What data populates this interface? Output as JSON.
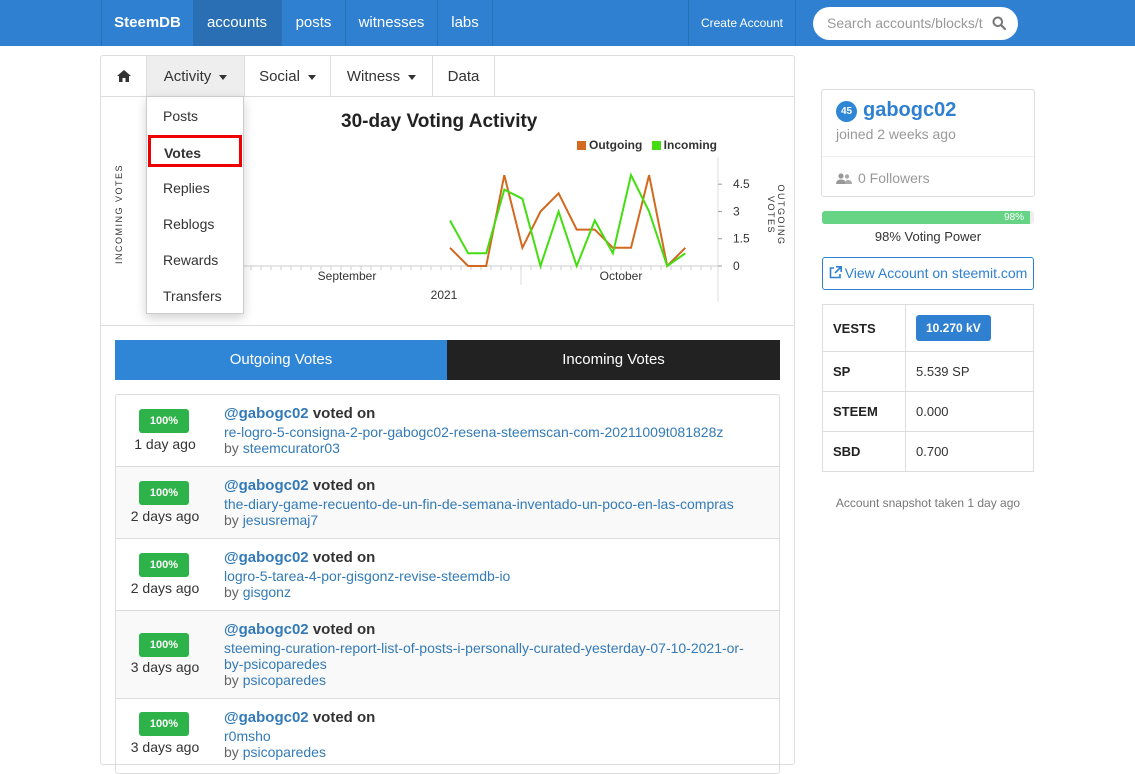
{
  "nav": {
    "brand": "SteemDB",
    "items": [
      "accounts",
      "posts",
      "witnesses",
      "labs"
    ],
    "create_account": "Create Account",
    "search_placeholder": "Search accounts/blocks/tx"
  },
  "tabs": {
    "activity": "Activity",
    "social": "Social",
    "witness": "Witness",
    "data": "Data"
  },
  "dropdown": [
    "Posts",
    "Votes",
    "Replies",
    "Reblogs",
    "Rewards",
    "Transfers"
  ],
  "chart_data": {
    "type": "line",
    "title": "30-day Voting Activity",
    "legend": [
      "Outgoing",
      "Incoming"
    ],
    "left_axis_label": "INCOMING VOTES",
    "right_axis_label": "OUTGOING VOTES",
    "right_ticks": [
      "4.5",
      "3",
      "1.5",
      "0"
    ],
    "x_labels": [
      "September",
      "October"
    ],
    "x_year": "2021",
    "colors": {
      "outgoing": "#d2691e",
      "incoming": "#44dd11"
    },
    "series": [
      {
        "name": "Outgoing",
        "values": [
          1,
          0,
          0,
          5,
          1,
          3,
          4,
          2,
          2,
          1,
          1,
          5,
          0,
          1
        ]
      },
      {
        "name": "Incoming",
        "values": [
          2.5,
          0.7,
          0.7,
          4.2,
          3.7,
          0,
          3,
          0,
          2.5,
          0.7,
          5,
          3,
          0,
          0.7
        ]
      }
    ]
  },
  "vote_tabs": {
    "outgoing": "Outgoing Votes",
    "incoming": "Incoming Votes"
  },
  "votes": [
    {
      "pct": "100%",
      "ago": "1 day ago",
      "voter": "@gabogc02",
      "action": "voted on",
      "permlink": "re-logro-5-consigna-2-por-gabogc02-resena-steemscan-com-20211009t081828z",
      "by": "by",
      "author": "steemcurator03"
    },
    {
      "pct": "100%",
      "ago": "2 days ago",
      "voter": "@gabogc02",
      "action": "voted on",
      "permlink": "the-diary-game-recuento-de-un-fin-de-semana-inventado-un-poco-en-las-compras",
      "by": "by",
      "author": "jesusremaj7"
    },
    {
      "pct": "100%",
      "ago": "2 days ago",
      "voter": "@gabogc02",
      "action": "voted on",
      "permlink": "logro-5-tarea-4-por-gisgonz-revise-steemdb-io",
      "by": "by",
      "author": "gisgonz"
    },
    {
      "pct": "100%",
      "ago": "3 days ago",
      "voter": "@gabogc02",
      "action": "voted on",
      "permlink": "steeming-curation-report-list-of-posts-i-personally-curated-yesterday-07-10-2021-or-by-psicoparedes",
      "by": "by",
      "author": "psicoparedes"
    },
    {
      "pct": "100%",
      "ago": "3 days ago",
      "voter": "@gabogc02",
      "action": "voted on",
      "permlink": "r0msho",
      "by": "by",
      "author": "psicoparedes"
    }
  ],
  "profile": {
    "level": "45",
    "username": "gabogc02",
    "joined": "joined 2 weeks ago",
    "followers": "0 Followers"
  },
  "voting_power": {
    "value": 0.98,
    "badge": "98%",
    "label": "98% Voting Power"
  },
  "view_account": "View Account on steemit.com",
  "stats": [
    {
      "key": "VESTS",
      "value": "10.270 kV"
    },
    {
      "key": "SP",
      "value": "5.539 SP"
    },
    {
      "key": "STEEM",
      "value": "0.000"
    },
    {
      "key": "SBD",
      "value": "0.700"
    }
  ],
  "snapshot": "Account snapshot taken 1 day ago"
}
